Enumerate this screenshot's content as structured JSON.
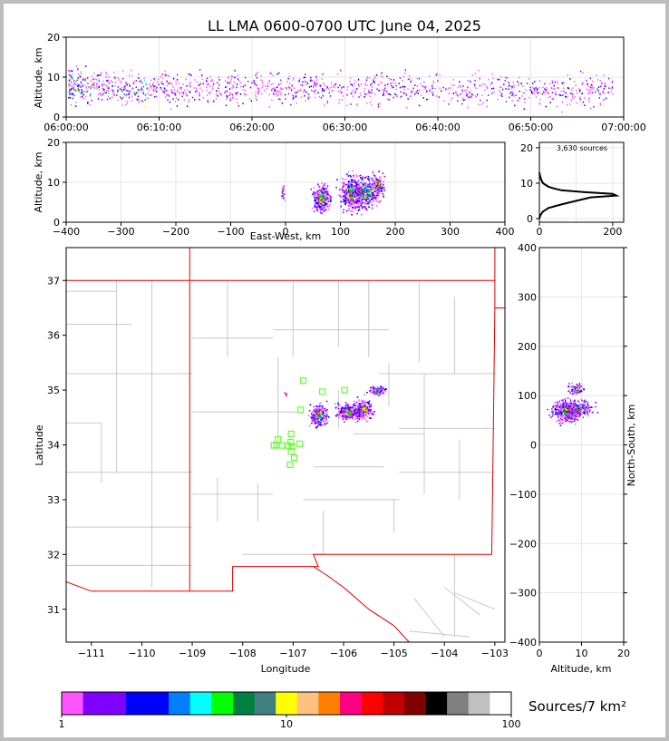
{
  "title": "LL LMA 0600-0700 UTC June 04, 2025",
  "colors": {
    "frame": "#bdbdbd",
    "state_border": "#e00000",
    "county_lines": "#c8c8c8",
    "station_marker": "#66ff33",
    "grid": "#e6e6e6"
  },
  "panels": {
    "time_height": {
      "ylabel": "Altitude, km",
      "ylim": [
        0,
        20
      ],
      "yticks": [
        "0",
        "10",
        "20"
      ],
      "xticks": [
        "06:00:00",
        "06:10:00",
        "06:20:00",
        "06:30:00",
        "06:40:00",
        "06:50:00",
        "07:00:00"
      ]
    },
    "ew_height": {
      "ylabel": "Altitude, km",
      "xlabel": "East-West, km",
      "xlim": [
        -400,
        400
      ],
      "ylim": [
        0,
        20
      ],
      "xticks": [
        "−400",
        "−300",
        "−200",
        "−100",
        "0",
        "100",
        "200",
        "300",
        "400"
      ],
      "yticks": [
        "0",
        "10",
        "20"
      ]
    },
    "histogram": {
      "annotation": "3,630 sources",
      "xlim": [
        0,
        230
      ],
      "ylim": [
        0,
        21
      ],
      "xticks": [
        "0",
        "200"
      ],
      "yticks": [
        "0",
        "10",
        "20"
      ]
    },
    "plan_view": {
      "xlabel": "Longitude",
      "ylabel": "Latitude",
      "xlim": [
        -111.5,
        -102.8
      ],
      "ylim": [
        30.4,
        37.6
      ],
      "xticks": [
        "−111",
        "−110",
        "−109",
        "−108",
        "−107",
        "−106",
        "−105",
        "−104",
        "−103"
      ],
      "yticks": [
        "31",
        "32",
        "33",
        "34",
        "35",
        "36",
        "37"
      ]
    },
    "ns_height": {
      "xlabel": "Altitude, km",
      "ylabel": "North-South, km",
      "xlim": [
        0,
        20
      ],
      "ylim": [
        -400,
        400
      ],
      "xticks": [
        "0",
        "10",
        "20"
      ],
      "yticks": [
        "−400",
        "−300",
        "−200",
        "−100",
        "0",
        "100",
        "200",
        "300",
        "400"
      ]
    }
  },
  "colorbar": {
    "label": "Sources/7 km²",
    "ticks": [
      "1",
      "10",
      "100"
    ],
    "colors": [
      "#ff55ff",
      "#8000ff",
      "#8000ff",
      "#0000ff",
      "#0000ff",
      "#0080ff",
      "#00ffff",
      "#00ff00",
      "#008040",
      "#408080",
      "#ffff00",
      "#ffc080",
      "#ff8000",
      "#ff0080",
      "#ff0000",
      "#c00000",
      "#800000",
      "#000000",
      "#808080",
      "#c0c0c0",
      "#ffffff"
    ]
  },
  "chart_data": [
    {
      "type": "scatter",
      "name": "time_height",
      "x_unit": "UTC time",
      "y_unit": "Altitude, km",
      "note_range": [
        "06:00:00",
        "07:00:00"
      ],
      "points_summary": [
        {
          "x": "06:00:00",
          "y": [
            2,
            11
          ]
        },
        {
          "x": "06:10:00",
          "y": [
            3,
            11
          ]
        },
        {
          "x": "06:20:00",
          "y": [
            4,
            10
          ]
        },
        {
          "x": "06:30:00",
          "y": [
            5,
            10
          ]
        },
        {
          "x": "06:40:00",
          "y": [
            5,
            10
          ]
        },
        {
          "x": "06:50:00",
          "y": [
            5,
            9
          ]
        }
      ]
    },
    {
      "type": "scatter",
      "name": "plan_view",
      "x_unit": "Longitude",
      "y_unit": "Latitude",
      "clusters": [
        {
          "lon": -106.5,
          "lat": 34.55
        },
        {
          "lon": -105.75,
          "lat": 34.65
        },
        {
          "lon": -105.35,
          "lat": 35.0
        },
        {
          "lon": -107.15,
          "lat": 34.94
        }
      ],
      "stations": [
        {
          "lon": -106.8,
          "lat": 35.17
        },
        {
          "lon": -106.42,
          "lat": 34.97
        },
        {
          "lon": -105.98,
          "lat": 35.0
        },
        {
          "lon": -106.85,
          "lat": 34.64
        },
        {
          "lon": -107.04,
          "lat": 34.2
        },
        {
          "lon": -107.3,
          "lat": 34.1
        },
        {
          "lon": -107.33,
          "lat": 34.0
        },
        {
          "lon": -107.22,
          "lat": 33.99
        },
        {
          "lon": -107.1,
          "lat": 33.99
        },
        {
          "lon": -107.05,
          "lat": 34.05
        },
        {
          "lon": -107.02,
          "lat": 33.97
        },
        {
          "lon": -107.04,
          "lat": 33.88
        },
        {
          "lon": -106.98,
          "lat": 33.77
        },
        {
          "lon": -107.06,
          "lat": 33.64
        },
        {
          "lon": -106.87,
          "lat": 34.02
        },
        {
          "lon": -107.38,
          "lat": 33.99
        }
      ]
    },
    {
      "type": "line",
      "name": "altitude_histogram",
      "x_unit": "sources",
      "y_unit": "Altitude, km",
      "points": [
        [
          0,
          0
        ],
        [
          3,
          1
        ],
        [
          10,
          2
        ],
        [
          25,
          3
        ],
        [
          60,
          4
        ],
        [
          100,
          5
        ],
        [
          140,
          6
        ],
        [
          210,
          6.5
        ],
        [
          200,
          7
        ],
        [
          120,
          7.5
        ],
        [
          60,
          8
        ],
        [
          40,
          8.5
        ],
        [
          25,
          9
        ],
        [
          10,
          10
        ],
        [
          5,
          11
        ],
        [
          2,
          12
        ],
        [
          0,
          13
        ]
      ]
    }
  ]
}
